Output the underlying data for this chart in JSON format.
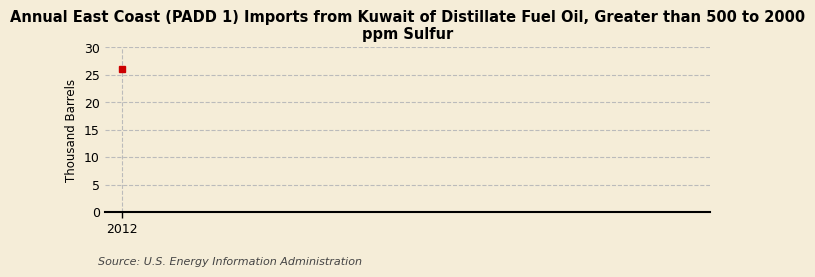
{
  "title": "Annual East Coast (PADD 1) Imports from Kuwait of Distillate Fuel Oil, Greater than 500 to 2000\nppm Sulfur",
  "ylabel": "Thousand Barrels",
  "source": "Source: U.S. Energy Information Administration",
  "background_color": "#f5edd8",
  "x_data": [
    2012
  ],
  "y_data": [
    26.0
  ],
  "marker_color": "#cc0000",
  "xlim": [
    2011.7,
    2022
  ],
  "ylim": [
    0,
    30
  ],
  "yticks": [
    0,
    5,
    10,
    15,
    20,
    25,
    30
  ],
  "xticks": [
    2012
  ],
  "grid_color": "#bbbbbb",
  "axis_line_color": "#000000",
  "title_fontsize": 10.5,
  "label_fontsize": 8.5,
  "tick_fontsize": 9,
  "source_fontsize": 8
}
